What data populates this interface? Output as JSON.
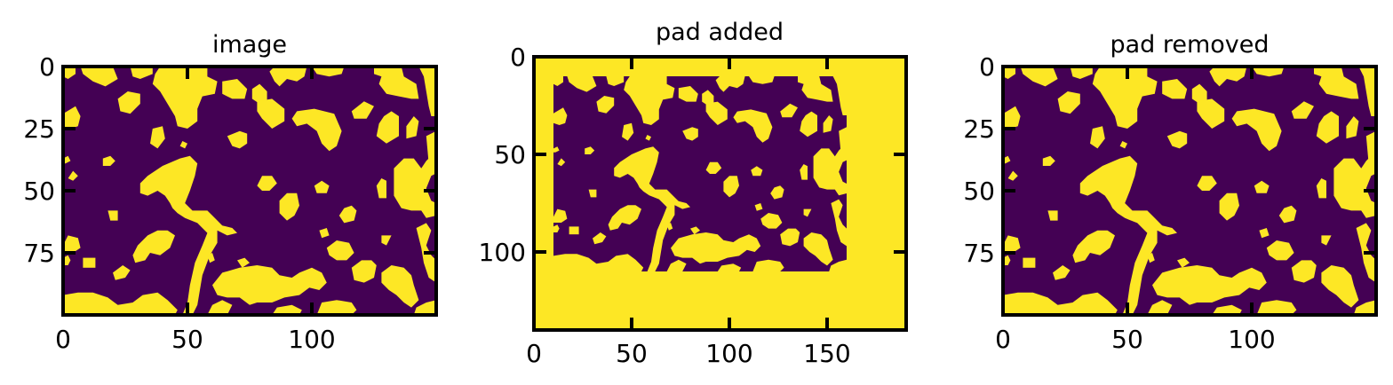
{
  "colors": {
    "background_phase": "#440154",
    "foreground_phase": "#fde725",
    "axes": "#000000"
  },
  "chart_data": [
    {
      "type": "heatmap",
      "title": "image",
      "shape": [
        100,
        150
      ],
      "xlim": [
        0,
        150
      ],
      "ylim": [
        100,
        0
      ],
      "x_ticks": [
        0,
        50,
        100
      ],
      "y_ticks": [
        0,
        25,
        50,
        75
      ],
      "x_tick_labels": [
        "0",
        "50",
        "100"
      ],
      "y_tick_labels": [
        "0",
        "25",
        "50",
        "75"
      ],
      "colormap": "viridis",
      "values": "binary 100x150 image (0 = purple phase, 1 = yellow phase)"
    },
    {
      "type": "heatmap",
      "title": "pad added",
      "shape": [
        140,
        190
      ],
      "xlim": [
        0,
        190
      ],
      "ylim": [
        140,
        0
      ],
      "x_ticks": [
        0,
        50,
        100,
        150
      ],
      "y_ticks": [
        0,
        50,
        100
      ],
      "x_tick_labels": [
        "0",
        "50",
        "100",
        "150"
      ],
      "y_tick_labels": [
        "0",
        "50",
        "100"
      ],
      "colormap": "viridis",
      "pad": {
        "value": 1,
        "original_region": {
          "row_start": 10,
          "row_end": 110,
          "col_start": 10,
          "col_end": 160
        }
      }
    },
    {
      "type": "heatmap",
      "title": "pad removed",
      "shape": [
        100,
        150
      ],
      "xlim": [
        0,
        150
      ],
      "ylim": [
        100,
        0
      ],
      "x_ticks": [
        0,
        50,
        100
      ],
      "y_ticks": [
        0,
        25,
        50,
        75
      ],
      "x_tick_labels": [
        "0",
        "50",
        "100"
      ],
      "y_tick_labels": [
        "0",
        "25",
        "50",
        "75"
      ],
      "colormap": "viridis"
    }
  ]
}
